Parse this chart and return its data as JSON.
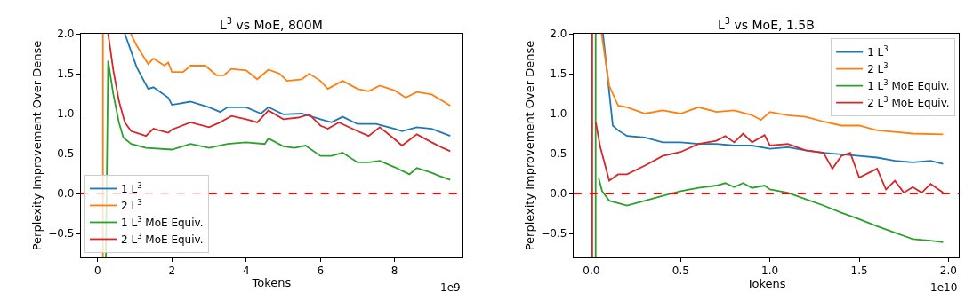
{
  "chart_data": [
    {
      "type": "line",
      "title": "L$^{3}$ vs MoE, 800M",
      "xlabel": "Tokens",
      "ylabel": "Perplexity Improvement Over Dense",
      "annotations": [
        "1e9"
      ],
      "xlim": [
        -0.46,
        9.83
      ],
      "xticks": [
        0,
        2,
        4,
        6,
        8
      ],
      "ylim": [
        -0.8,
        2.0
      ],
      "yticks": [
        {
          "value": -0.5,
          "label": "−0.5"
        },
        {
          "value": 0,
          "label": "0.0"
        },
        {
          "value": 0.5,
          "label": "0.5"
        },
        {
          "value": 1,
          "label": "1.0"
        },
        {
          "value": 1.5,
          "label": "1.5"
        },
        {
          "value": 2,
          "label": "2.0"
        }
      ],
      "legend": "bottom left",
      "line_style": "solid",
      "marker": "none",
      "ref_lines": [
        {
          "axis": "y",
          "value": 0,
          "color": "#ff0000",
          "line_style": "dashed"
        }
      ],
      "series": [
        {
          "name": "1 L$^{3}$",
          "color": "#1f77b4",
          "x": [
            0.73,
            1.05,
            1.36,
            1.5,
            1.9,
            2.0,
            2.5,
            3.0,
            3.3,
            3.5,
            4.0,
            4.4,
            4.6,
            5.0,
            5.5,
            6.0,
            6.3,
            6.6,
            7.0,
            7.5,
            8.0,
            8.2,
            8.6,
            9.0,
            9.5
          ],
          "values": [
            2.0,
            1.58,
            1.31,
            1.33,
            1.2,
            1.11,
            1.15,
            1.08,
            1.02,
            1.08,
            1.08,
            1.0,
            1.08,
            0.99,
            1.0,
            0.93,
            0.89,
            0.96,
            0.87,
            0.87,
            0.81,
            0.78,
            0.83,
            0.81,
            0.72
          ]
        },
        {
          "name": "2 L$^{3}$",
          "color": "#ff7f0e",
          "x": [
            0.14,
            0.14,
            0.5,
            0.89,
            1.05,
            1.36,
            1.5,
            1.8,
            1.9,
            2.0,
            2.3,
            2.5,
            2.9,
            3.2,
            3.4,
            3.6,
            4.0,
            4.3,
            4.6,
            4.9,
            5.1,
            5.5,
            5.7,
            6.0,
            6.2,
            6.6,
            7.0,
            7.3,
            7.6,
            8.0,
            8.3,
            8.6,
            9.0,
            9.5
          ],
          "values": [
            -0.8,
            2.0,
            null,
            2.0,
            1.85,
            1.62,
            1.69,
            1.6,
            1.64,
            1.52,
            1.52,
            1.6,
            1.6,
            1.48,
            1.48,
            1.56,
            1.54,
            1.43,
            1.55,
            1.5,
            1.41,
            1.43,
            1.5,
            1.41,
            1.31,
            1.41,
            1.31,
            1.28,
            1.35,
            1.29,
            1.2,
            1.27,
            1.24,
            1.1
          ]
        },
        {
          "name": "1 L$^{3}$ MoE Equiv.",
          "color": "#2ca02c",
          "x": [
            0.22,
            0.28,
            0.42,
            0.57,
            0.69,
            0.9,
            1.3,
            2.0,
            2.5,
            3.0,
            3.5,
            4.0,
            4.5,
            4.6,
            5.0,
            5.3,
            5.6,
            6.0,
            6.3,
            6.6,
            7.0,
            7.3,
            7.6,
            8.0,
            8.4,
            8.6,
            9.0,
            9.2,
            9.5
          ],
          "values": [
            -0.8,
            1.66,
            1.24,
            0.89,
            0.7,
            0.62,
            0.57,
            0.55,
            0.62,
            0.57,
            0.62,
            0.64,
            0.62,
            0.69,
            0.59,
            0.57,
            0.6,
            0.47,
            0.47,
            0.51,
            0.39,
            0.39,
            0.41,
            0.33,
            0.24,
            0.32,
            0.26,
            0.22,
            0.17
          ]
        },
        {
          "name": "2 L$^{3}$ MoE Equiv.",
          "color": "#d62728",
          "x": [
            0.28,
            0.42,
            0.57,
            0.73,
            0.9,
            1.3,
            1.5,
            1.9,
            2.0,
            2.5,
            3.0,
            3.3,
            3.6,
            4.0,
            4.3,
            4.6,
            5.0,
            5.4,
            5.7,
            6.0,
            6.2,
            6.5,
            7.0,
            7.3,
            7.6,
            8.0,
            8.2,
            8.6,
            9.0,
            9.3,
            9.5
          ],
          "values": [
            2.0,
            1.54,
            1.16,
            0.89,
            0.78,
            0.72,
            0.81,
            0.76,
            0.8,
            0.89,
            0.83,
            0.89,
            0.97,
            0.93,
            0.89,
            1.04,
            0.93,
            0.95,
            0.99,
            0.85,
            0.81,
            0.89,
            0.78,
            0.72,
            0.83,
            0.68,
            0.6,
            0.74,
            0.64,
            0.57,
            0.53
          ]
        }
      ]
    },
    {
      "type": "line",
      "title": "L$^{3}$ vs MoE, 1.5B",
      "xlabel": "Tokens",
      "ylabel": "Perplexity Improvement Over Dense",
      "annotations": [
        "1e10"
      ],
      "xlim": [
        -0.1,
        2.06
      ],
      "xticks": [
        {
          "value": 0,
          "label": "0.0"
        },
        {
          "value": 0.5,
          "label": "0.5"
        },
        {
          "value": 1,
          "label": "1.0"
        },
        {
          "value": 1.5,
          "label": "1.5"
        },
        {
          "value": 2,
          "label": "2.0"
        }
      ],
      "ylim": [
        -0.8,
        2.0
      ],
      "yticks": [
        {
          "value": -0.5,
          "label": "−0.5"
        },
        {
          "value": 0,
          "label": "0.0"
        },
        {
          "value": 0.5,
          "label": "0.5"
        },
        {
          "value": 1,
          "label": "1.0"
        },
        {
          "value": 1.5,
          "label": "1.5"
        },
        {
          "value": 2,
          "label": "2.0"
        }
      ],
      "legend": "top right",
      "line_style": "solid",
      "marker": "none",
      "ref_lines": [
        {
          "axis": "y",
          "value": 0,
          "color": "#ff0000",
          "line_style": "dashed"
        }
      ],
      "series": [
        {
          "name": "1 L$^{3}$",
          "color": "#1f77b4",
          "x": [
            0.065,
            0.12,
            0.15,
            0.2,
            0.3,
            0.4,
            0.5,
            0.6,
            0.7,
            0.8,
            0.9,
            1.0,
            1.1,
            1.2,
            1.3,
            1.4,
            1.5,
            1.6,
            1.7,
            1.8,
            1.9,
            1.97
          ],
          "values": [
            2.0,
            0.85,
            0.79,
            0.72,
            0.7,
            0.64,
            0.64,
            0.62,
            0.62,
            0.6,
            0.6,
            0.56,
            0.58,
            0.54,
            0.51,
            0.49,
            0.47,
            0.45,
            0.41,
            0.39,
            0.41,
            0.37
          ]
        },
        {
          "name": "2 L$^{3}$",
          "color": "#ff7f0e",
          "x": [
            0.057,
            0.1,
            0.15,
            0.2,
            0.3,
            0.4,
            0.5,
            0.6,
            0.7,
            0.8,
            0.9,
            0.95,
            1.0,
            1.1,
            1.2,
            1.3,
            1.4,
            1.5,
            1.6,
            1.7,
            1.8,
            1.97
          ],
          "values": [
            2.0,
            1.35,
            1.1,
            1.08,
            1.0,
            1.04,
            1.0,
            1.08,
            1.02,
            1.04,
            0.98,
            0.92,
            1.02,
            0.98,
            0.96,
            0.9,
            0.85,
            0.85,
            0.79,
            0.77,
            0.75,
            0.74
          ]
        },
        {
          "name": "1 L$^{3}$ MoE Equiv.",
          "color": "#2ca02c",
          "x": [
            0.024,
            0.024,
            0.03,
            0.04,
            0.06,
            0.1,
            0.2,
            0.3,
            0.4,
            0.5,
            0.6,
            0.7,
            0.75,
            0.8,
            0.85,
            0.9,
            0.97,
            1.0,
            1.1,
            1.2,
            1.3,
            1.4,
            1.5,
            1.6,
            1.7,
            1.8,
            1.9,
            1.97
          ],
          "values": [
            -0.8,
            2.0,
            null,
            0.2,
            0.03,
            -0.09,
            -0.15,
            -0.09,
            -0.03,
            0.03,
            0.07,
            0.1,
            0.13,
            0.08,
            0.13,
            0.07,
            0.1,
            0.05,
            0.01,
            -0.07,
            -0.15,
            -0.24,
            -0.32,
            -0.41,
            -0.49,
            -0.57,
            -0.59,
            -0.61
          ]
        },
        {
          "name": "2 L$^{3}$ MoE Equiv.",
          "color": "#d62728",
          "x": [
            0.005,
            0.005,
            0.01,
            0.025,
            0.05,
            0.1,
            0.15,
            0.2,
            0.3,
            0.4,
            0.5,
            0.6,
            0.7,
            0.75,
            0.8,
            0.85,
            0.9,
            0.97,
            1.0,
            1.1,
            1.2,
            1.3,
            1.35,
            1.4,
            1.45,
            1.5,
            1.6,
            1.65,
            1.7,
            1.75,
            1.8,
            1.85,
            1.9,
            1.97
          ],
          "values": [
            -0.8,
            2.0,
            null,
            0.89,
            0.58,
            0.16,
            0.24,
            0.24,
            0.35,
            0.47,
            0.52,
            0.62,
            0.66,
            0.72,
            0.64,
            0.75,
            0.64,
            0.73,
            0.6,
            0.62,
            0.54,
            0.51,
            0.31,
            0.47,
            0.51,
            0.2,
            0.31,
            0.05,
            0.16,
            0.01,
            0.08,
            0.01,
            0.12,
            0.01
          ]
        }
      ]
    }
  ]
}
